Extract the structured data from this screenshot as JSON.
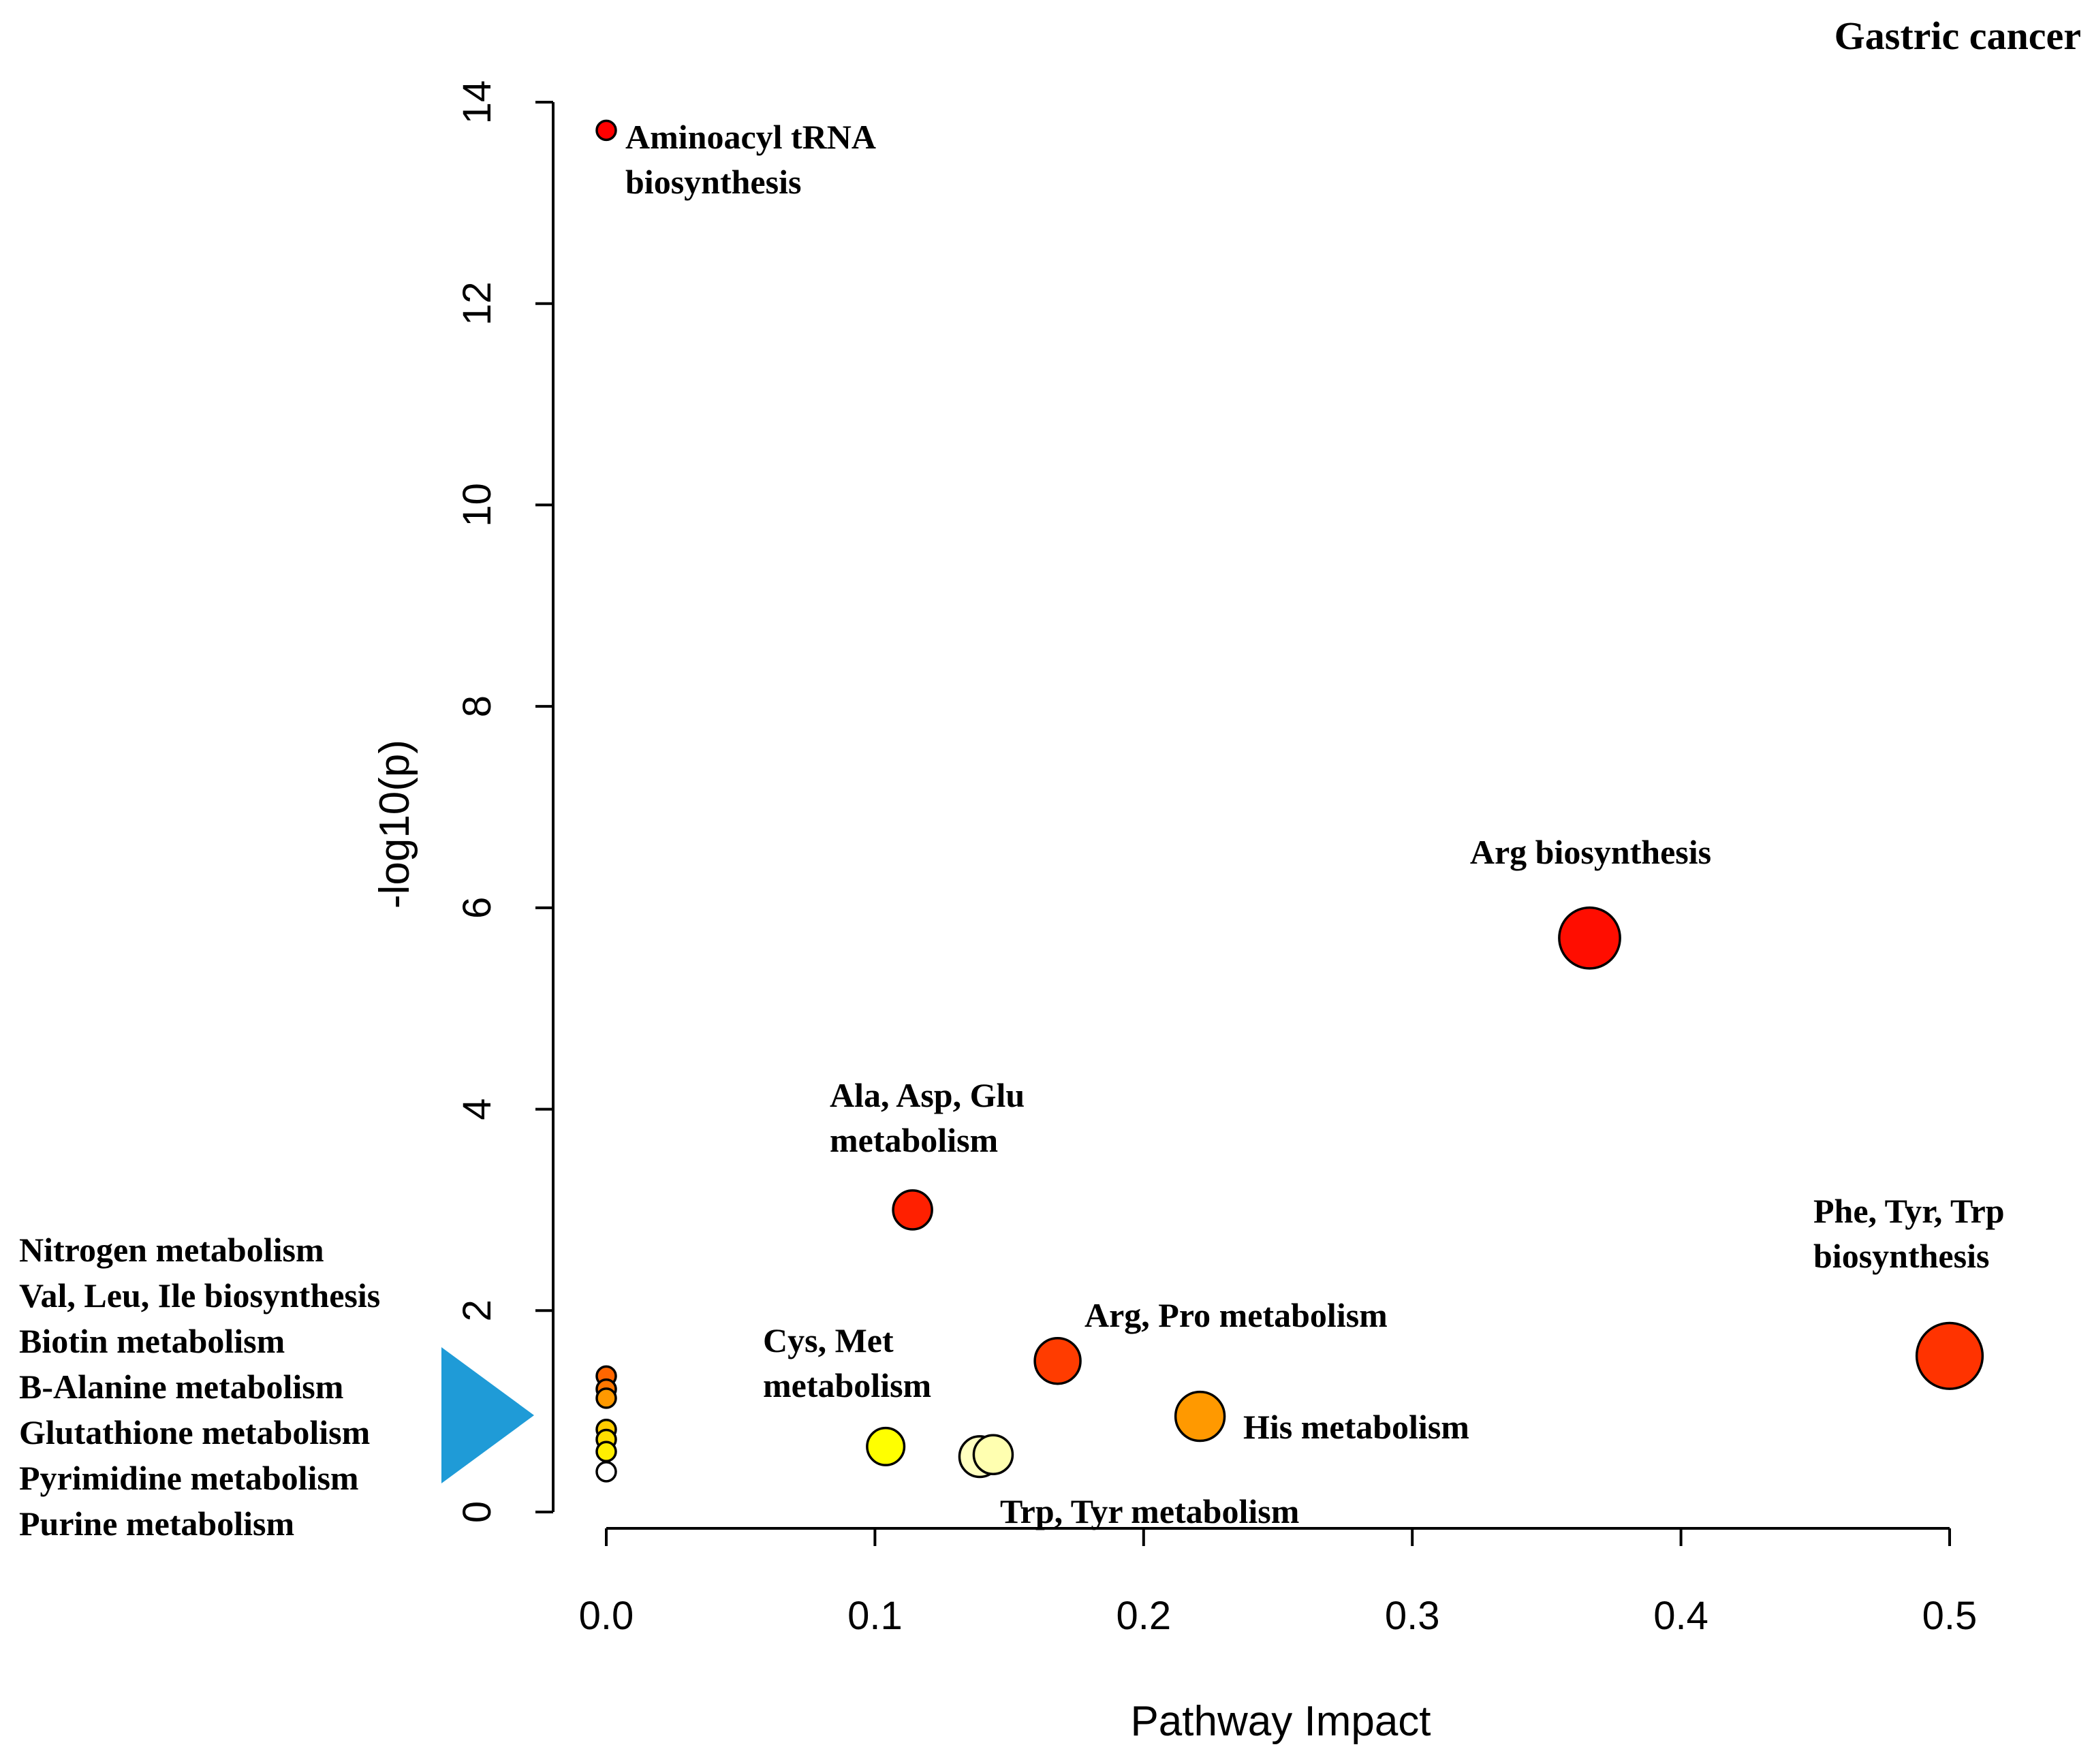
{
  "chart_data": {
    "type": "scatter",
    "title": "Gastric cancer",
    "xlabel": "Pathway Impact",
    "ylabel": "-log10(p)",
    "xlim": [
      0.0,
      0.5
    ],
    "ylim": [
      0,
      14
    ],
    "xticks": [
      "0.0",
      "0.1",
      "0.2",
      "0.3",
      "0.4",
      "0.5"
    ],
    "yticks": [
      "0",
      "2",
      "4",
      "6",
      "8",
      "10",
      "12",
      "14"
    ],
    "points": [
      {
        "name": "Aminoacyl tRNA biosynthesis",
        "x": 0.0,
        "y": 13.72,
        "size": 0.12,
        "color": "#FF0000"
      },
      {
        "name": "Arg biosynthesis",
        "x": 0.366,
        "y": 5.7,
        "size": 0.72,
        "color": "#FF0D00"
      },
      {
        "name": "Ala, Asp, Glu metabolism",
        "x": 0.114,
        "y": 3.0,
        "size": 0.46,
        "color": "#FF2000"
      },
      {
        "name": "Phe, Tyr, Trp biosynthesis",
        "x": 0.5,
        "y": 1.55,
        "size": 0.78,
        "color": "#FF3300"
      },
      {
        "name": "Arg, Pro metabolism",
        "x": 0.168,
        "y": 1.5,
        "size": 0.54,
        "color": "#FF3C00"
      },
      {
        "name": "His metabolism",
        "x": 0.221,
        "y": 0.95,
        "size": 0.58,
        "color": "#FF9900"
      },
      {
        "name": "Cys, Met metabolism",
        "x": 0.104,
        "y": 0.65,
        "size": 0.44,
        "color": "#FFFF00"
      },
      {
        "name": "Trp metabolism",
        "x": 0.144,
        "y": 0.57,
        "size": 0.46,
        "color": "#FFFFB0"
      },
      {
        "name": "Tyr metabolism",
        "x": 0.139,
        "y": 0.55,
        "size": 0.48,
        "color": "#FFFFC0"
      },
      {
        "name": "Nitrogen metabolism",
        "x": 0.0,
        "y": 1.35,
        "size": 0.1,
        "color": "#FF6600"
      },
      {
        "name": "Val, Leu, Ile biosynthesis",
        "x": 0.0,
        "y": 1.22,
        "size": 0.1,
        "color": "#FF7700"
      },
      {
        "name": "Biotin metabolism",
        "x": 0.0,
        "y": 1.13,
        "size": 0.1,
        "color": "#FF9900"
      },
      {
        "name": "B-Alanine metabolism",
        "x": 0.0,
        "y": 0.82,
        "size": 0.1,
        "color": "#FFCC00"
      },
      {
        "name": "Glutathione metabolism",
        "x": 0.0,
        "y": 0.72,
        "size": 0.1,
        "color": "#FFDD00"
      },
      {
        "name": "Pyrimidine metabolism",
        "x": 0.0,
        "y": 0.6,
        "size": 0.1,
        "color": "#FFEE00"
      },
      {
        "name": "Purine metabolism",
        "x": 0.0,
        "y": 0.4,
        "size": 0.1,
        "color": "#FFFFFF"
      }
    ],
    "annotations": [
      {
        "lines": [
          "Aminoacyl tRNA",
          "biosynthesis"
        ]
      },
      {
        "lines": [
          "Arg biosynthesis"
        ]
      },
      {
        "lines": [
          "Ala, Asp, Glu",
          "metabolism"
        ]
      },
      {
        "lines": [
          "Phe, Tyr, Trp",
          "biosynthesis"
        ]
      },
      {
        "lines": [
          "Arg, Pro metabolism"
        ]
      },
      {
        "lines": [
          "His metabolism"
        ]
      },
      {
        "lines": [
          "Cys, Met",
          "metabolism"
        ]
      },
      {
        "lines": [
          "Trp, Tyr metabolism"
        ]
      }
    ],
    "side_list": [
      "Nitrogen metabolism",
      "Val, Leu, Ile biosynthesis",
      "Biotin metabolism",
      "B-Alanine metabolism",
      "Glutathione metabolism",
      "Pyrimidine metabolism",
      "Purine metabolism"
    ],
    "arrow_color": "#1F9BD7"
  }
}
